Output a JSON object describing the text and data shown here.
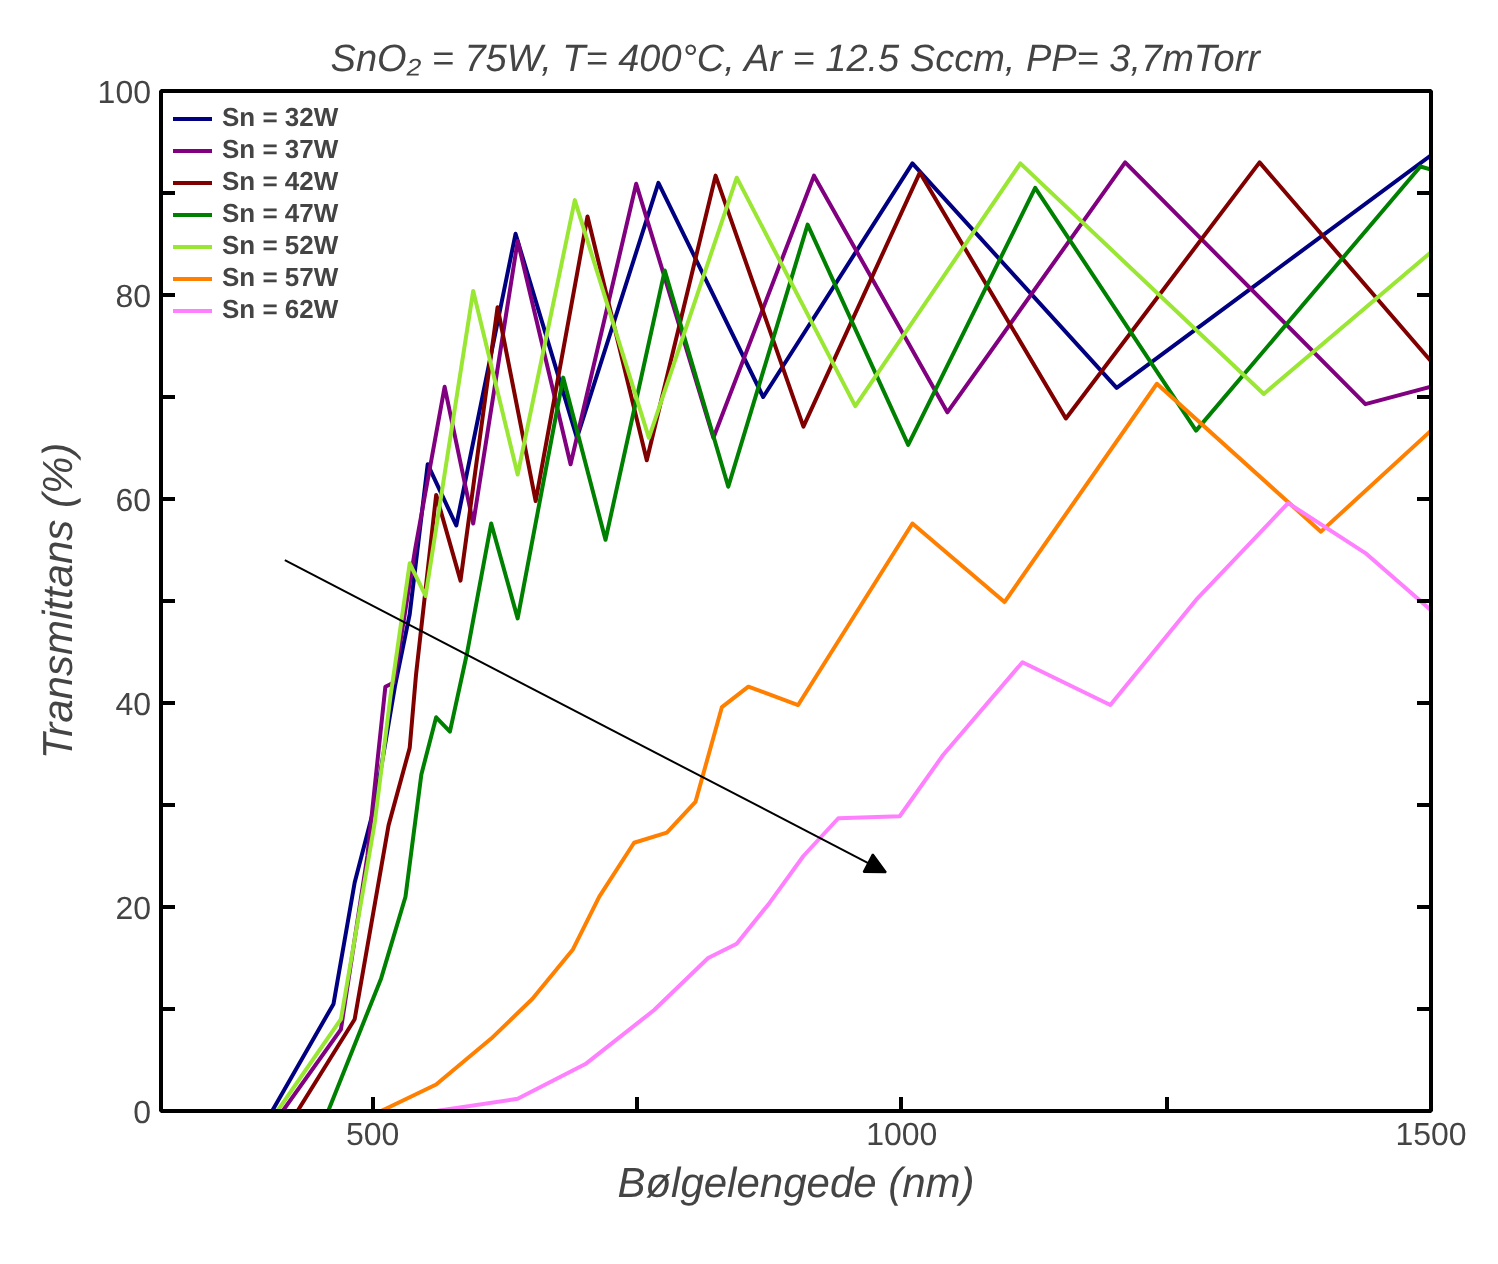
{
  "chart_data": {
    "type": "line",
    "title": "SnO₂ = 75W, T= 400°C, Ar = 12.5 Sccm, PP= 3,7mTorr",
    "xlabel": "Bølgelengede (nm)",
    "ylabel": "Transmittans (%)",
    "xlim": [
      300,
      1500
    ],
    "ylim": [
      0,
      100
    ],
    "xticks": [
      500,
      {
        "value": 750,
        "label": null
      },
      1000,
      {
        "value": 1250,
        "label": null
      },
      1500
    ],
    "yticks": [
      0,
      {
        "value": 10,
        "label": null
      },
      20,
      {
        "value": 30,
        "label": null
      },
      40,
      {
        "value": 50,
        "label": null
      },
      60,
      {
        "value": 70,
        "label": null
      },
      80,
      {
        "value": 90,
        "label": null
      },
      100
    ],
    "grid": false,
    "legend": "top left",
    "line_style": "solid",
    "series": [
      {
        "name": "Sn = 32W",
        "color": "#000080",
        "x": [
          300,
          405,
          463,
          483,
          502,
          521,
          535,
          552,
          579,
          635,
          693,
          770,
          869,
          1010,
          1203,
          1500
        ],
        "values": [
          0,
          0,
          10.5,
          22.4,
          30,
          41.6,
          48.7,
          63.4,
          57.4,
          86,
          66,
          91,
          70,
          92.9,
          70.9,
          93.7
        ]
      },
      {
        "name": "Sn = 37W",
        "color": "#800080",
        "x": [
          300,
          415,
          470,
          495,
          512,
          520,
          540,
          568,
          595,
          637,
          687,
          749,
          822,
          917,
          1043,
          1211,
          1438,
          1500
        ],
        "values": [
          0,
          0,
          8,
          25,
          41.6,
          42,
          55,
          71,
          57.6,
          85.3,
          63.4,
          90.9,
          66,
          91.7,
          68.5,
          93,
          69.3,
          71
        ]
      },
      {
        "name": "Sn = 42W",
        "color": "#800000",
        "x": [
          300,
          429,
          483,
          515,
          535,
          541,
          560,
          583,
          618,
          654,
          703,
          759,
          824,
          907,
          1017,
          1155,
          1338,
          1500
        ],
        "values": [
          0,
          0,
          9,
          28,
          35.6,
          42.8,
          60.4,
          52,
          78.8,
          59.8,
          87.7,
          63.8,
          91.7,
          67.1,
          92,
          67.9,
          93,
          73.5
        ]
      },
      {
        "name": "Sn = 47W",
        "color": "#008000",
        "x": [
          300,
          458,
          508,
          531,
          546,
          560,
          573,
          589,
          612,
          637,
          680,
          720,
          776,
          836,
          911,
          1006,
          1126,
          1278,
          1490,
          1500
        ],
        "values": [
          0,
          0,
          13,
          21,
          33,
          38.6,
          37.2,
          44.8,
          57.6,
          48.3,
          71.9,
          56,
          82.4,
          61.2,
          86.9,
          65.3,
          90.5,
          66.7,
          92.6,
          92.3
        ]
      },
      {
        "name": "Sn = 52W",
        "color": "#99e633",
        "x": [
          300,
          410,
          470,
          502,
          517,
          521,
          535,
          550,
          595,
          637,
          691,
          761,
          844,
          956,
          1112,
          1342,
          1500
        ],
        "values": [
          0,
          0,
          9,
          28.3,
          40.8,
          43.6,
          53.7,
          50.5,
          80.4,
          62.4,
          89.3,
          66,
          91.5,
          69.1,
          92.9,
          70.3,
          84.2
        ]
      },
      {
        "name": "Sn = 57W",
        "color": "#ff8000",
        "x": [
          300,
          508,
          560,
          612,
          651,
          689,
          714,
          747,
          778,
          805,
          830,
          855,
          902,
          1010,
          1097,
          1241,
          1396,
          1500
        ],
        "values": [
          0,
          0,
          2.6,
          7.1,
          11,
          15.8,
          21,
          26.3,
          27.3,
          30.3,
          39.6,
          41.6,
          39.8,
          57.6,
          49.9,
          71.3,
          56.8,
          66.7
        ]
      },
      {
        "name": "Sn = 62W",
        "color": "#ff80ff",
        "x": [
          300,
          560,
          637,
          701,
          766,
          817,
          844,
          875,
          907,
          940,
          998,
          1039,
          1114,
          1197,
          1278,
          1365,
          1438,
          1500
        ],
        "values": [
          0,
          0,
          1.2,
          4.6,
          9.9,
          15,
          16.4,
          20.4,
          25,
          28.7,
          28.9,
          34.9,
          44,
          39.8,
          50.1,
          59.6,
          54.7,
          49.1
        ]
      }
    ]
  }
}
